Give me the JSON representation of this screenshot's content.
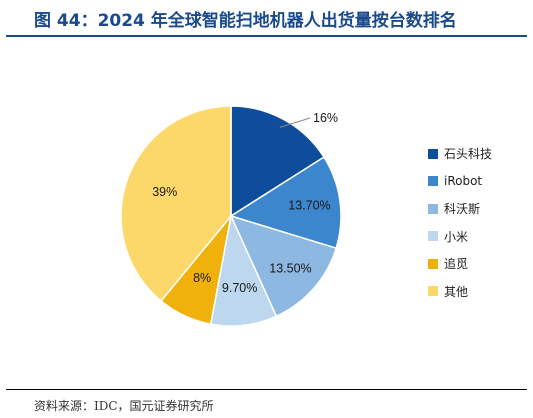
{
  "title": "图 44：2024 年全球智能扫地机器人出货量按台数排名",
  "source": "资料来源：IDC，国元证券研究所",
  "chart_data": {
    "type": "pie",
    "slices": [
      {
        "label": "石头科技",
        "value": 16,
        "display": "16%",
        "color": "#0d4d9c"
      },
      {
        "label": "iRobot",
        "value": 13.7,
        "display": "13.70%",
        "color": "#3c86ce"
      },
      {
        "label": "科沃斯",
        "value": 13.5,
        "display": "13.50%",
        "color": "#8db8e2"
      },
      {
        "label": "小米",
        "value": 9.7,
        "display": "9.70%",
        "color": "#bdd7ee"
      },
      {
        "label": "追觅",
        "value": 8,
        "display": "8%",
        "color": "#f1b10d"
      },
      {
        "label": "其他",
        "value": 39,
        "display": "39%",
        "color": "#fcd86a"
      }
    ],
    "legend_position": "right"
  }
}
